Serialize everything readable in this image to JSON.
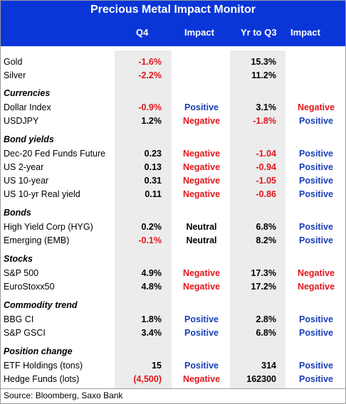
{
  "title": "Precious Metal Impact Monitor",
  "columns": {
    "q4": "Q4",
    "impact1": "Impact",
    "ytd": "Yr to Q3",
    "impact2": "Impact"
  },
  "rows": [
    {
      "type": "data",
      "label": "Gold",
      "q4": "-1.6%",
      "q4_neg": true,
      "impact1": "",
      "ytd": "15.3%",
      "ytd_neg": false,
      "impact2": ""
    },
    {
      "type": "data",
      "label": "Silver",
      "q4": "-2.2%",
      "q4_neg": true,
      "impact1": "",
      "ytd": "11.2%",
      "ytd_neg": false,
      "impact2": ""
    },
    {
      "type": "section",
      "label": "Currencies"
    },
    {
      "type": "data",
      "label": "Dollar Index",
      "q4": "-0.9%",
      "q4_neg": true,
      "impact1": "Positive",
      "ytd": "3.1%",
      "ytd_neg": false,
      "impact2": "Negative"
    },
    {
      "type": "data",
      "label": "USDJPY",
      "q4": "1.2%",
      "q4_neg": false,
      "impact1": "Negative",
      "ytd": "-1.8%",
      "ytd_neg": true,
      "impact2": "Positive"
    },
    {
      "type": "section",
      "label": "Bond yields"
    },
    {
      "type": "data",
      "label": "Dec-20 Fed Funds Future",
      "q4": "0.23",
      "q4_neg": false,
      "impact1": "Negative",
      "ytd": "-1.04",
      "ytd_neg": true,
      "impact2": "Positive"
    },
    {
      "type": "data",
      "label": "US 2-year",
      "q4": "0.13",
      "q4_neg": false,
      "impact1": "Negative",
      "ytd": "-0.94",
      "ytd_neg": true,
      "impact2": "Positive"
    },
    {
      "type": "data",
      "label": "US 10-year",
      "q4": "0.31",
      "q4_neg": false,
      "impact1": "Negative",
      "ytd": "-1.05",
      "ytd_neg": true,
      "impact2": "Positive"
    },
    {
      "type": "data",
      "label": "US 10-yr Real yield",
      "q4": "0.11",
      "q4_neg": false,
      "impact1": "Negative",
      "ytd": "-0.86",
      "ytd_neg": true,
      "impact2": "Positive"
    },
    {
      "type": "section",
      "label": "Bonds"
    },
    {
      "type": "data",
      "label": "High Yield Corp (HYG)",
      "q4": "0.2%",
      "q4_neg": false,
      "impact1": "Neutral",
      "ytd": "6.8%",
      "ytd_neg": false,
      "impact2": "Positive"
    },
    {
      "type": "data",
      "label": "Emerging (EMB)",
      "q4": "-0.1%",
      "q4_neg": true,
      "impact1": "Neutral",
      "ytd": "8.2%",
      "ytd_neg": false,
      "impact2": "Positive"
    },
    {
      "type": "section",
      "label": "Stocks"
    },
    {
      "type": "data",
      "label": "S&P 500",
      "q4": "4.9%",
      "q4_neg": false,
      "impact1": "Negative",
      "ytd": "17.3%",
      "ytd_neg": false,
      "impact2": "Negative"
    },
    {
      "type": "data",
      "label": "EuroStoxx50",
      "q4": "4.8%",
      "q4_neg": false,
      "impact1": "Negative",
      "ytd": "17.2%",
      "ytd_neg": false,
      "impact2": "Negative"
    },
    {
      "type": "section",
      "label": "Commodity trend"
    },
    {
      "type": "data",
      "label": "BBG CI",
      "q4": "1.8%",
      "q4_neg": false,
      "impact1": "Positive",
      "ytd": "2.8%",
      "ytd_neg": false,
      "impact2": "Positive"
    },
    {
      "type": "data",
      "label": "S&P GSCI",
      "q4": "3.4%",
      "q4_neg": false,
      "impact1": "Positive",
      "ytd": "6.8%",
      "ytd_neg": false,
      "impact2": "Positive"
    },
    {
      "type": "section",
      "label": "Position change"
    },
    {
      "type": "data",
      "label": "ETF Holdings (tons)",
      "q4": "15",
      "q4_neg": false,
      "impact1": "Positive",
      "ytd": "314",
      "ytd_neg": false,
      "impact2": "Positive"
    },
    {
      "type": "data",
      "label": "Hedge Funds (lots)",
      "q4": "(4,500)",
      "q4_neg": true,
      "impact1": "Negative",
      "ytd": "162300",
      "ytd_neg": false,
      "impact2": "Positive"
    }
  ],
  "source": "Source: Bloomberg, Saxo Bank",
  "colors": {
    "header_bg": "#0a36d8",
    "positive": "#1a3fb8",
    "negative": "#e0151b",
    "band": "#ececec"
  }
}
